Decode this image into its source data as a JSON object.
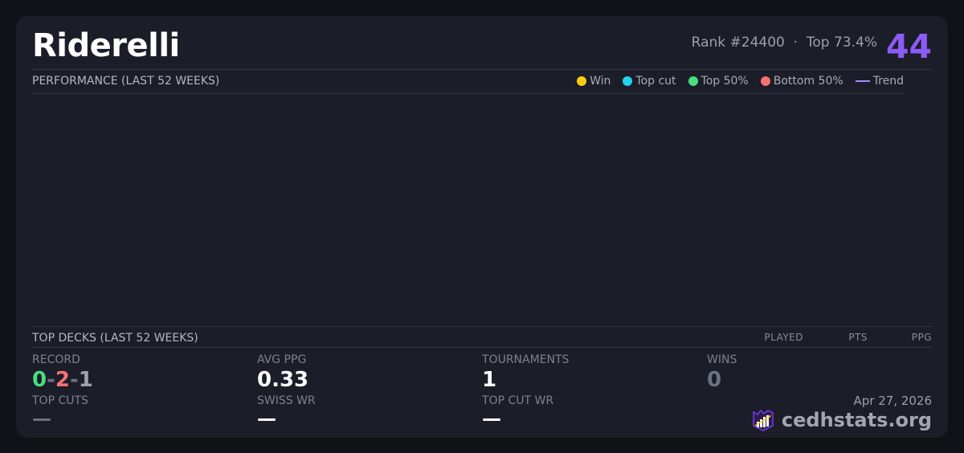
{
  "player": {
    "name": "Riderelli",
    "rank": "Rank #24400",
    "dot": "·",
    "top": "Top 73.4%",
    "score": "44"
  },
  "performance": {
    "title": "PERFORMANCE (LAST 52 WEEKS)",
    "legend": [
      {
        "label": "Win",
        "color": "#facc15"
      },
      {
        "label": "Top cut",
        "color": "#22d3ee"
      },
      {
        "label": "Top 50%",
        "color": "#4ade80"
      },
      {
        "label": "Bottom 50%",
        "color": "#f87171"
      },
      {
        "label": "Trend",
        "color": "#a78bfa"
      }
    ]
  },
  "decks": {
    "title": "TOP DECKS (LAST 52 WEEKS)",
    "columns": [
      "PLAYED",
      "PTS",
      "PPG"
    ]
  },
  "stats": {
    "record": {
      "label": "RECORD",
      "wins": "0",
      "losses": "2",
      "draws": "1",
      "sep": "-"
    },
    "avg_ppg": {
      "label": "AVG PPG",
      "value": "0.33"
    },
    "tournaments": {
      "label": "TOURNAMENTS",
      "value": "1"
    },
    "wins": {
      "label": "WINS",
      "value": "0"
    },
    "top_cuts": {
      "label": "TOP CUTS",
      "value": "—"
    },
    "swiss_wr": {
      "label": "SWISS WR",
      "value": "—"
    },
    "top_cut_wr": {
      "label": "TOP CUT WR",
      "value": "—"
    }
  },
  "footer": {
    "date": "Apr 27, 2026",
    "brand": "cedhstats.org"
  }
}
